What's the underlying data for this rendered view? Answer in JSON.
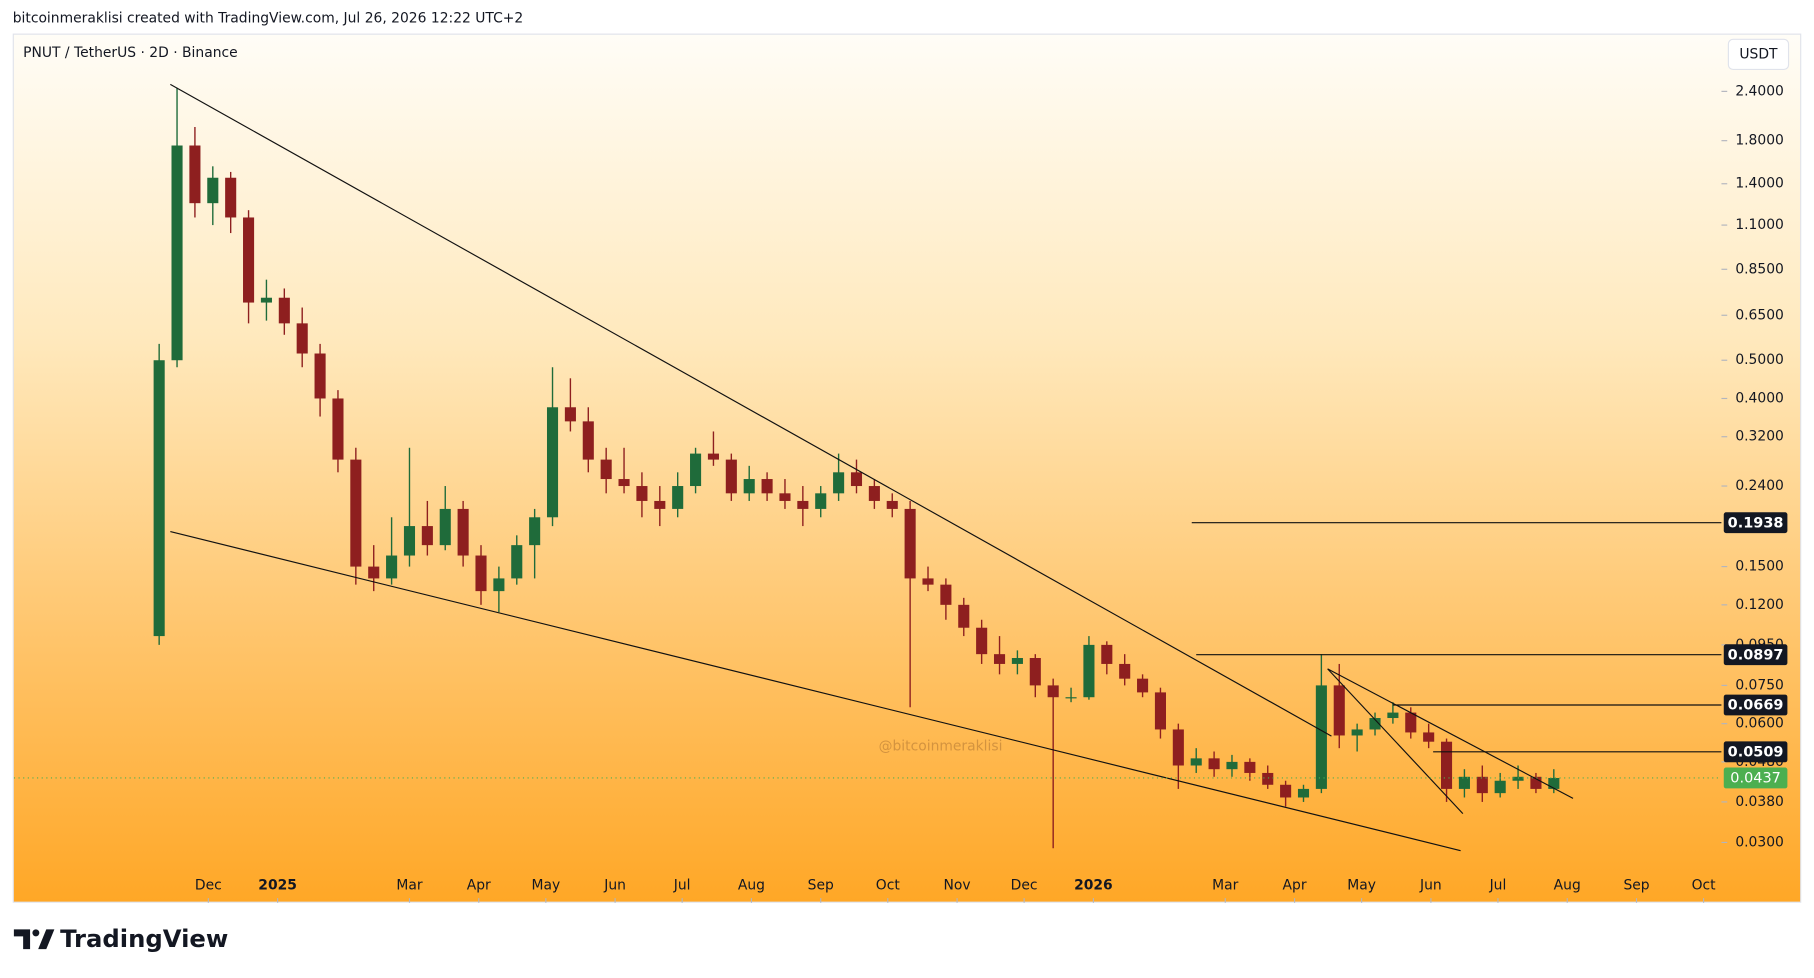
{
  "chart_data": {
    "type": "candlestick",
    "credit": "bitcoinmeraklisi created with TradingView.com, Jul 26, 2026 12:22 UTC+2",
    "title": "PNUT / TetherUS · 2D · Binance",
    "currency_label": "USDT",
    "watermark": "@bitcoinmeraklisi",
    "brand": "TradingView",
    "log_scale": true,
    "up_color": "#1f6b3a",
    "down_color": "#8e1f1f",
    "line_color": "#111111",
    "last_price_color": "#4caf50",
    "xlim": [
      -57,
      707
    ],
    "xticks": [
      {
        "value": 30,
        "label": "Dec"
      },
      {
        "value": 61,
        "label": "2025"
      },
      {
        "value": 120,
        "label": "Mar"
      },
      {
        "value": 151,
        "label": "Apr"
      },
      {
        "value": 181,
        "label": "May"
      },
      {
        "value": 212,
        "label": "Jun"
      },
      {
        "value": 242,
        "label": "Jul"
      },
      {
        "value": 273,
        "label": "Aug"
      },
      {
        "value": 304,
        "label": "Sep"
      },
      {
        "value": 334,
        "label": "Oct"
      },
      {
        "value": 365,
        "label": "Nov"
      },
      {
        "value": 395,
        "label": "Dec"
      },
      {
        "value": 426,
        "label": "2026"
      },
      {
        "value": 485,
        "label": "Mar"
      },
      {
        "value": 516,
        "label": "Apr"
      },
      {
        "value": 546,
        "label": "May"
      },
      {
        "value": 577,
        "label": "Jun"
      },
      {
        "value": 607,
        "label": "Jul"
      },
      {
        "value": 638,
        "label": "Aug"
      },
      {
        "value": 669,
        "label": "Sep"
      },
      {
        "value": 699,
        "label": "Oct"
      }
    ],
    "ylim": [
      0.0211,
      3.34
    ],
    "yticks": [
      {
        "value": 2.4,
        "label": "2.4000"
      },
      {
        "value": 1.8,
        "label": "1.8000"
      },
      {
        "value": 1.4,
        "label": "1.4000"
      },
      {
        "value": 1.1,
        "label": "1.1000"
      },
      {
        "value": 0.85,
        "label": "0.8500"
      },
      {
        "value": 0.65,
        "label": "0.6500"
      },
      {
        "value": 0.5,
        "label": "0.5000"
      },
      {
        "value": 0.4,
        "label": "0.4000"
      },
      {
        "value": 0.32,
        "label": "0.3200"
      },
      {
        "value": 0.24,
        "label": "0.2400"
      },
      {
        "value": 0.15,
        "label": "0.1500"
      },
      {
        "value": 0.12,
        "label": "0.1200"
      },
      {
        "value": 0.095,
        "label": "0.0950"
      },
      {
        "value": 0.075,
        "label": "0.0750"
      },
      {
        "value": 0.06,
        "label": "0.0600"
      },
      {
        "value": 0.048,
        "label": "0.0480"
      },
      {
        "value": 0.038,
        "label": "0.0380"
      },
      {
        "value": 0.03,
        "label": "0.0300"
      }
    ],
    "x": [
      8,
      16,
      24,
      32,
      40,
      48,
      56,
      64,
      72,
      80,
      88,
      96,
      104,
      112,
      120,
      128,
      136,
      144,
      152,
      160,
      168,
      176,
      184,
      192,
      200,
      208,
      216,
      224,
      232,
      240,
      248,
      256,
      264,
      272,
      280,
      288,
      296,
      304,
      312,
      320,
      328,
      336,
      344,
      352,
      360,
      368,
      376,
      384,
      392,
      400,
      408,
      416,
      424,
      432,
      440,
      448,
      456,
      464,
      472,
      480,
      488,
      496,
      504,
      512,
      520,
      528,
      536,
      544,
      552,
      560,
      568,
      576,
      584,
      592,
      600,
      608,
      616,
      624,
      632
    ],
    "open": [
      0.1,
      0.5,
      1.75,
      1.25,
      1.45,
      1.15,
      0.7,
      0.72,
      0.62,
      0.52,
      0.4,
      0.28,
      0.15,
      0.14,
      0.16,
      0.19,
      0.17,
      0.21,
      0.16,
      0.13,
      0.14,
      0.17,
      0.2,
      0.38,
      0.35,
      0.28,
      0.25,
      0.24,
      0.22,
      0.21,
      0.24,
      0.29,
      0.28,
      0.23,
      0.25,
      0.23,
      0.22,
      0.21,
      0.23,
      0.26,
      0.24,
      0.22,
      0.21,
      0.14,
      0.135,
      0.12,
      0.105,
      0.09,
      0.085,
      0.088,
      0.075,
      0.07,
      0.07,
      0.095,
      0.085,
      0.078,
      0.072,
      0.058,
      0.047,
      0.049,
      0.046,
      0.048,
      0.045,
      0.042,
      0.039,
      0.041,
      0.075,
      0.056,
      0.058,
      0.062,
      0.064,
      0.057,
      0.054,
      0.041,
      0.044,
      0.04,
      0.043,
      0.044,
      0.041
    ],
    "high": [
      0.55,
      2.45,
      1.95,
      1.55,
      1.5,
      1.2,
      0.8,
      0.76,
      0.68,
      0.55,
      0.42,
      0.3,
      0.17,
      0.2,
      0.3,
      0.22,
      0.24,
      0.22,
      0.17,
      0.15,
      0.18,
      0.21,
      0.48,
      0.45,
      0.38,
      0.3,
      0.3,
      0.26,
      0.24,
      0.26,
      0.3,
      0.33,
      0.29,
      0.27,
      0.26,
      0.25,
      0.24,
      0.24,
      0.29,
      0.28,
      0.25,
      0.23,
      0.22,
      0.15,
      0.14,
      0.125,
      0.11,
      0.1,
      0.092,
      0.09,
      0.078,
      0.074,
      0.1,
      0.097,
      0.09,
      0.08,
      0.074,
      0.06,
      0.052,
      0.051,
      0.05,
      0.049,
      0.047,
      0.043,
      0.042,
      0.09,
      0.085,
      0.06,
      0.064,
      0.068,
      0.066,
      0.06,
      0.055,
      0.046,
      0.047,
      0.045,
      0.047,
      0.045,
      0.046
    ],
    "low": [
      0.095,
      0.48,
      1.15,
      1.1,
      1.05,
      0.62,
      0.63,
      0.58,
      0.48,
      0.36,
      0.26,
      0.135,
      0.13,
      0.135,
      0.15,
      0.16,
      0.165,
      0.15,
      0.12,
      0.115,
      0.135,
      0.14,
      0.19,
      0.33,
      0.26,
      0.23,
      0.23,
      0.2,
      0.19,
      0.2,
      0.23,
      0.27,
      0.22,
      0.22,
      0.22,
      0.21,
      0.19,
      0.2,
      0.22,
      0.23,
      0.21,
      0.2,
      0.066,
      0.13,
      0.11,
      0.1,
      0.085,
      0.08,
      0.08,
      0.07,
      0.029,
      0.068,
      0.069,
      0.08,
      0.075,
      0.07,
      0.055,
      0.041,
      0.045,
      0.044,
      0.044,
      0.043,
      0.041,
      0.037,
      0.038,
      0.04,
      0.052,
      0.051,
      0.056,
      0.06,
      0.055,
      0.052,
      0.038,
      0.039,
      0.038,
      0.039,
      0.041,
      0.04,
      0.04
    ],
    "close": [
      0.5,
      1.75,
      1.25,
      1.45,
      1.15,
      0.7,
      0.72,
      0.62,
      0.52,
      0.4,
      0.28,
      0.15,
      0.14,
      0.16,
      0.19,
      0.17,
      0.21,
      0.16,
      0.13,
      0.14,
      0.17,
      0.2,
      0.38,
      0.35,
      0.28,
      0.25,
      0.24,
      0.22,
      0.21,
      0.24,
      0.29,
      0.28,
      0.23,
      0.25,
      0.23,
      0.22,
      0.21,
      0.23,
      0.26,
      0.24,
      0.22,
      0.21,
      0.14,
      0.135,
      0.12,
      0.105,
      0.09,
      0.085,
      0.088,
      0.075,
      0.07,
      0.07,
      0.095,
      0.085,
      0.078,
      0.072,
      0.058,
      0.047,
      0.049,
      0.046,
      0.048,
      0.045,
      0.042,
      0.039,
      0.041,
      0.075,
      0.056,
      0.058,
      0.062,
      0.064,
      0.057,
      0.054,
      0.041,
      0.044,
      0.04,
      0.043,
      0.044,
      0.041,
      0.0437
    ],
    "trendlines": [
      {
        "x": [
          13,
          532.5
        ],
        "y": [
          2.5,
          0.0558
        ]
      },
      {
        "x": [
          13,
          590.3
        ],
        "y": [
          0.184,
          0.0286
        ]
      },
      {
        "x": [
          530.8,
          640.6
        ],
        "y": [
          0.0826,
          0.0388
        ]
      },
      {
        "x": [
          530.8,
          591.3
        ],
        "y": [
          0.0826,
          0.0355
        ]
      }
    ],
    "levels": [
      {
        "value": 0.1938,
        "x_start": 470
      },
      {
        "value": 0.0897,
        "x_start": 472
      },
      {
        "value": 0.0669,
        "x_start": 560
      },
      {
        "value": 0.0509,
        "x_start": 578
      }
    ],
    "last_price": 0.0437
  }
}
